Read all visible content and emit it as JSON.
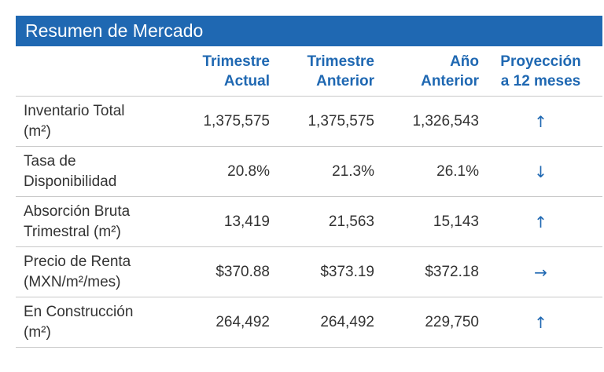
{
  "title": "Resumen de Mercado",
  "headers": [
    {
      "line1": "",
      "line2": ""
    },
    {
      "line1": "Trimestre",
      "line2": "Actual"
    },
    {
      "line1": "Trimestre",
      "line2": "Anterior"
    },
    {
      "line1": "Año",
      "line2": "Anterior"
    },
    {
      "line1": "Proyección",
      "line2": "a 12 meses"
    }
  ],
  "rows": [
    {
      "label1": "Inventario Total",
      "label2": "(m²)",
      "actual": "1,375,575",
      "anterior": "1,375,575",
      "anio": "1,326,543",
      "trend": "↑",
      "trend_icon": "arrow-up-icon"
    },
    {
      "label1": "Tasa de",
      "label2": "Disponibilidad",
      "actual": "20.8%",
      "anterior": "21.3%",
      "anio": "26.1%",
      "trend": "↓",
      "trend_icon": "arrow-down-icon"
    },
    {
      "label1": "Absorción Bruta",
      "label2": "Trimestral (m²)",
      "actual": "13,419",
      "anterior": "21,563",
      "anio": "15,143",
      "trend": "↑",
      "trend_icon": "arrow-up-icon"
    },
    {
      "label1": "Precio de Renta",
      "label2": "(MXN/m²/mes)",
      "actual": "$370.88",
      "anterior": "$373.19",
      "anio": "$372.18",
      "trend": "→",
      "trend_icon": "arrow-right-icon"
    },
    {
      "label1": "En Construcción",
      "label2": "(m²)",
      "actual": "264,492",
      "anterior": "264,492",
      "anio": "229,750",
      "trend": "↑",
      "trend_icon": "arrow-up-icon"
    }
  ],
  "colors": {
    "accent": "#1f68b2",
    "text": "#333333",
    "divider": "#c8c8c8"
  }
}
